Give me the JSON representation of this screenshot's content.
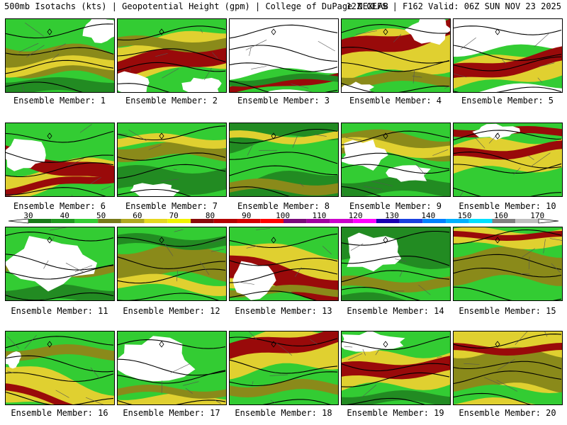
{
  "header": {
    "left": "500mb Isotachs (kts) | Geopotential Height (gpm) | College of DuPage NEXLAB",
    "right": "12Z GEFS | F162 Valid: 06Z SUN NOV 23 2025"
  },
  "colorbar": {
    "ticks": [
      "30",
      "40",
      "50",
      "60",
      "70",
      "80",
      "90",
      "100",
      "110",
      "120",
      "130",
      "140",
      "150",
      "160",
      "170"
    ],
    "colors": [
      "#1a7a1a",
      "#1f9a1f",
      "#33cc33",
      "#777a1a",
      "#b0a820",
      "#e6d820",
      "#f2f200",
      "#8a0a0a",
      "#b30000",
      "#d40000",
      "#ff0000",
      "#7a0a7a",
      "#a000a0",
      "#cc00cc",
      "#ff00ff",
      "#1a00b3",
      "#1a40e0",
      "#0080ff",
      "#00b0ff",
      "#00e0ff",
      "#808080",
      "#bfbfbf"
    ]
  },
  "palette": {
    "white": "#ffffff",
    "dark_green": "#228b22",
    "green": "#33cc33",
    "olive": "#8a8a1a",
    "yellow": "#e0d030",
    "dark_red": "#990a0a"
  },
  "members": [
    {
      "label": "Ensemble Member: 1",
      "speed_kts": [
        50,
        60,
        70
      ]
    },
    {
      "label": "Ensemble Member: 2",
      "speed_kts": [
        60,
        70,
        90
      ]
    },
    {
      "label": "Ensemble Member: 3",
      "speed_kts": [
        30,
        50,
        80
      ]
    },
    {
      "label": "Ensemble Member: 4",
      "speed_kts": [
        60,
        70,
        90
      ]
    },
    {
      "label": "Ensemble Member: 5",
      "speed_kts": [
        50,
        70,
        90
      ]
    },
    {
      "label": "Ensemble Member: 6",
      "speed_kts": [
        50,
        70,
        90
      ]
    },
    {
      "label": "Ensemble Member: 7",
      "speed_kts": [
        40,
        50,
        60
      ]
    },
    {
      "label": "Ensemble Member: 8",
      "speed_kts": [
        40,
        50,
        60
      ]
    },
    {
      "label": "Ensemble Member: 9",
      "speed_kts": [
        40,
        60,
        70
      ]
    },
    {
      "label": "Ensemble Member: 10",
      "speed_kts": [
        50,
        70,
        90
      ]
    },
    {
      "label": "Ensemble Member: 11",
      "speed_kts": [
        30,
        40,
        50
      ]
    },
    {
      "label": "Ensemble Member: 12",
      "speed_kts": [
        40,
        50,
        60
      ]
    },
    {
      "label": "Ensemble Member: 13",
      "speed_kts": [
        60,
        70,
        90
      ]
    },
    {
      "label": "Ensemble Member: 14",
      "speed_kts": [
        30,
        40,
        60
      ]
    },
    {
      "label": "Ensemble Member: 15",
      "speed_kts": [
        40,
        60,
        90
      ]
    },
    {
      "label": "Ensemble Member: 16",
      "speed_kts": [
        50,
        70,
        90
      ]
    },
    {
      "label": "Ensemble Member: 17",
      "speed_kts": [
        30,
        50,
        60
      ]
    },
    {
      "label": "Ensemble Member: 18",
      "speed_kts": [
        50,
        70,
        90
      ]
    },
    {
      "label": "Ensemble Member: 19",
      "speed_kts": [
        50,
        70,
        90
      ]
    },
    {
      "label": "Ensemble Member: 20",
      "speed_kts": [
        60,
        70,
        90
      ]
    }
  ]
}
